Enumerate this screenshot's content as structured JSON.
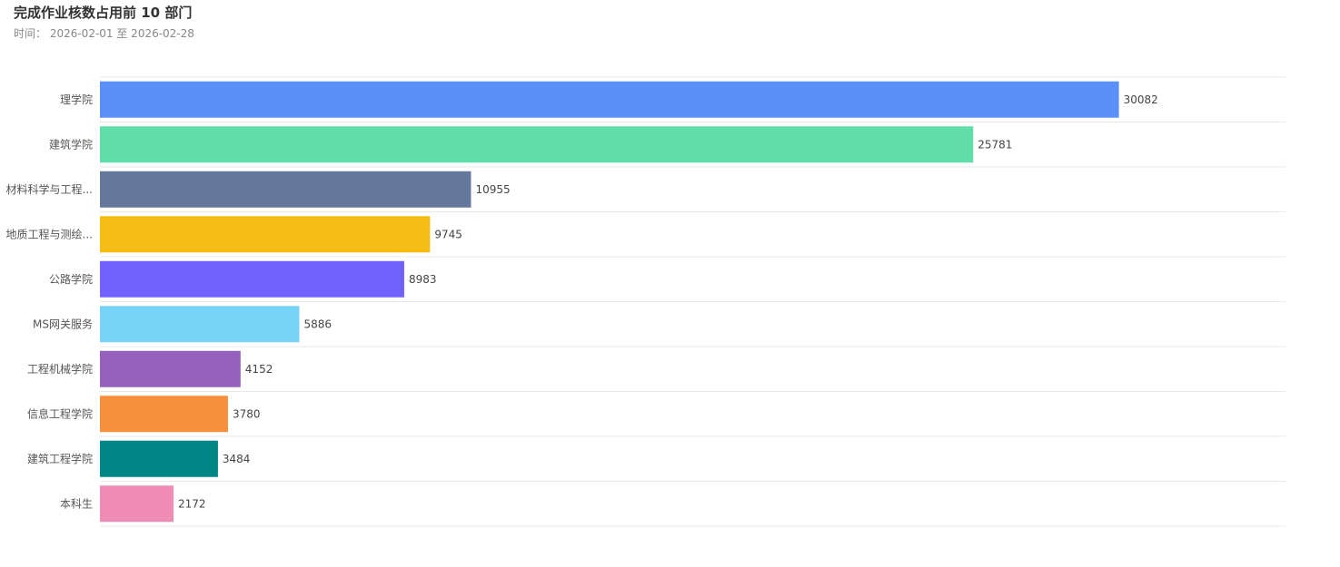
{
  "chart_data": {
    "type": "bar",
    "orientation": "horizontal",
    "title": "完成作业核数占用前 10 部门",
    "subtitle": "时间： 2026-02-01 至 2026-02-28",
    "categories": [
      "理学院",
      "建筑学院",
      "材料科学与工程...",
      "地质工程与测绘...",
      "公路学院",
      "MS网关服务",
      "工程机械学院",
      "信息工程学院",
      "建筑工程学院",
      "本科生"
    ],
    "values": [
      30082,
      25781,
      10955,
      9745,
      8983,
      5886,
      4152,
      3780,
      3484,
      2172
    ],
    "colors": [
      "#5b8ff9",
      "#61ddaa",
      "#65789b",
      "#f6bd16",
      "#7262fd",
      "#78d3f8",
      "#9661bc",
      "#f6903d",
      "#008685",
      "#f08bb4"
    ],
    "xlim": [
      0,
      35000
    ],
    "grid": true,
    "data_labels": true,
    "legend": "none"
  }
}
